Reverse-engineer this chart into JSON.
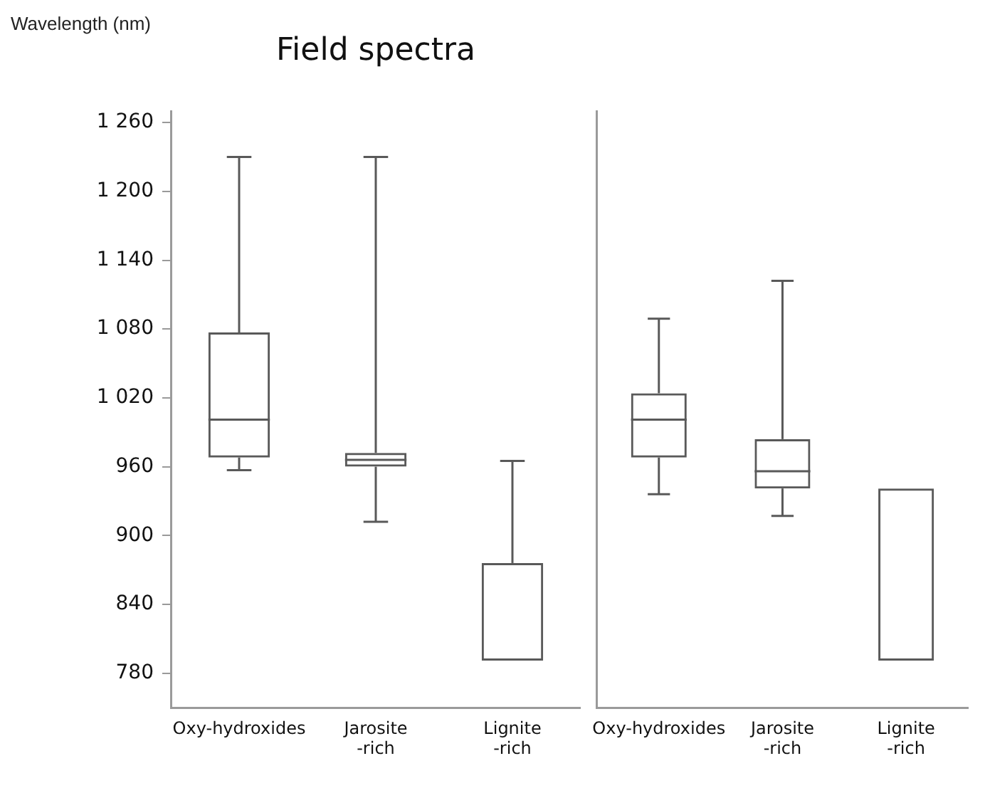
{
  "chart_data": [
    {
      "type": "box",
      "title": "Field spectra",
      "ylabel": "Wavelength (nm)",
      "categories": [
        "Oxy-hydroxides",
        "Jarosite -rich",
        "Lignite -rich"
      ],
      "series": [
        {
          "color": "#595959",
          "boxes": [
            {
              "low": 957,
              "q1": 968,
              "median": 1001,
              "q3": 1077,
              "high": 1230
            },
            {
              "low": 912,
              "q1": 960,
              "median": 966,
              "q3": 972,
              "high": 1230
            },
            {
              "low": 791,
              "q1": 791,
              "median": 791,
              "q3": 876,
              "high": 965
            }
          ]
        }
      ],
      "ylim": [
        750,
        1270
      ],
      "yticks": [
        780,
        {
          "value": 840,
          "label": "840"
        },
        900,
        960,
        {
          "value": 1020,
          "label": "1 020"
        },
        {
          "value": 1080,
          "label": "1 080"
        },
        {
          "value": 1140,
          "label": "1 140"
        },
        {
          "value": 1200,
          "label": "1 200"
        },
        {
          "value": 1260,
          "label": "1 260"
        }
      ],
      "grid": false
    },
    {
      "type": "box",
      "categories": [
        "Oxy-hydroxides",
        "Jarosite -rich",
        "Lignite -rich"
      ],
      "series": [
        {
          "color": "#595959",
          "boxes": [
            {
              "low": 936,
              "q1": 968,
              "median": 1001,
              "q3": 1024,
              "high": 1089
            },
            {
              "low": 917,
              "q1": 941,
              "median": 956,
              "q3": 984,
              "high": 1122
            },
            {
              "low": 791,
              "q1": 791,
              "median": 791,
              "q3": 941,
              "high": 941
            }
          ]
        }
      ],
      "ylim": [
        750,
        1270
      ],
      "yticks": [
        780,
        840,
        900,
        960,
        1020,
        1080,
        1140,
        1200,
        1260
      ],
      "tick_labels": "x",
      "grid": false
    }
  ]
}
